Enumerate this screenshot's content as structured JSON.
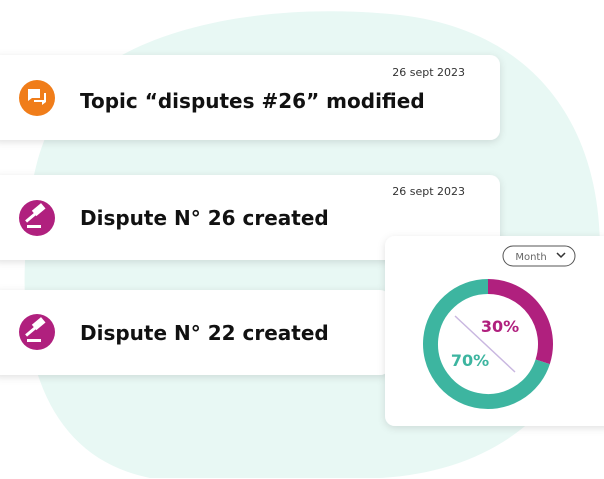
{
  "notifications": [
    {
      "date": "26 sept 2023",
      "title": "Topic “disputes #26” modified"
    },
    {
      "date": "26 sept 2023",
      "title": "Dispute N° 26 created"
    },
    {
      "title": "Dispute N° 22 created"
    }
  ],
  "chart_data": {
    "type": "donut",
    "dropdown": "Month",
    "series": [
      {
        "color": "#b0207e",
        "values": [
          30
        ],
        "value_labels": [
          "30%"
        ]
      },
      {
        "color": "#3db5a0",
        "values": [
          70
        ],
        "value_labels": [
          "70%"
        ]
      }
    ]
  }
}
